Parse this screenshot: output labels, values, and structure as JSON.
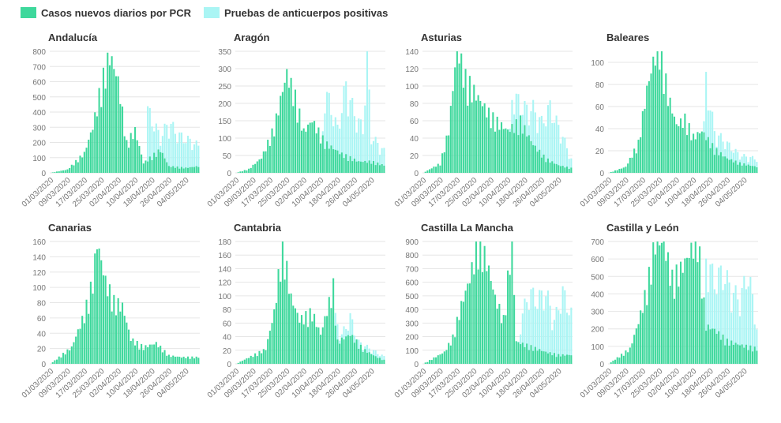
{
  "legend": {
    "pcr_label": "Casos nuevos diarios por PCR",
    "anticuerpos_label": "Pruebas de anticuerpos positivas"
  },
  "colors": {
    "pcr": "#3ed89c",
    "anticuerpos": "#aaf5f4",
    "axis_text": "#777777",
    "grid": "#e6e6e6"
  },
  "chart_data": [
    {
      "type": "bar",
      "title": "Andalucía",
      "ylim": [
        0,
        800
      ],
      "yticks": [
        0,
        100,
        200,
        300,
        400,
        500,
        600,
        700,
        800
      ],
      "xticks": [
        "01/03/2020",
        "09/03/2020",
        "17/03/2020",
        "25/03/2020",
        "02/04/2020",
        "10/04/2020",
        "18/04/2020",
        "26/04/2020",
        "04/05/2020"
      ],
      "series": [
        {
          "name": "Casos nuevos diarios por PCR",
          "color": "#3ed89c",
          "points": [
            [
              0,
              0
            ],
            [
              8,
              20
            ],
            [
              16,
              120
            ],
            [
              20,
              280
            ],
            [
              24,
              530
            ],
            [
              28,
              720
            ],
            [
              32,
              560
            ],
            [
              36,
              180
            ],
            [
              40,
              260
            ],
            [
              44,
              60
            ],
            [
              52,
              140
            ],
            [
              56,
              40
            ],
            [
              64,
              30
            ],
            [
              70,
              40
            ]
          ]
        },
        {
          "name": "Pruebas de anticuerpos positivas",
          "color": "#aaf5f4",
          "points": [
            [
              0,
              0
            ],
            [
              45,
              0
            ],
            [
              46,
              390
            ],
            [
              52,
              220
            ],
            [
              56,
              320
            ],
            [
              60,
              240
            ],
            [
              66,
              200
            ],
            [
              70,
              170
            ]
          ]
        }
      ]
    },
    {
      "type": "bar",
      "title": "Aragón",
      "ylim": [
        0,
        350
      ],
      "yticks": [
        0,
        50,
        100,
        150,
        200,
        250,
        300,
        350
      ],
      "xticks": [
        "01/03/2020",
        "09/03/2020",
        "17/03/2020",
        "25/03/2020",
        "02/04/2020",
        "10/04/2020",
        "18/04/2020",
        "26/04/2020",
        "04/05/2020"
      ],
      "series": [
        {
          "name": "Casos nuevos diarios por PCR",
          "color": "#3ed89c",
          "points": [
            [
              0,
              0
            ],
            [
              6,
              10
            ],
            [
              12,
              40
            ],
            [
              18,
              120
            ],
            [
              22,
              220
            ],
            [
              24,
              265
            ],
            [
              28,
              200
            ],
            [
              32,
              110
            ],
            [
              36,
              140
            ],
            [
              42,
              80
            ],
            [
              50,
              50
            ],
            [
              58,
              30
            ],
            [
              64,
              30
            ],
            [
              70,
              20
            ]
          ]
        },
        {
          "name": "Pruebas de anticuerpos positivas",
          "color": "#aaf5f4",
          "points": [
            [
              0,
              0
            ],
            [
              40,
              0
            ],
            [
              42,
              230
            ],
            [
              48,
              120
            ],
            [
              52,
              240
            ],
            [
              56,
              160
            ],
            [
              60,
              120
            ],
            [
              62,
              320
            ],
            [
              64,
              100
            ],
            [
              70,
              60
            ]
          ]
        }
      ]
    },
    {
      "type": "bar",
      "title": "Asturias",
      "ylim": [
        0,
        140
      ],
      "yticks": [
        0,
        20,
        40,
        60,
        80,
        100,
        120,
        140
      ],
      "xticks": [
        "01/03/2020",
        "09/03/2020",
        "17/03/2020",
        "25/03/2020",
        "02/04/2020",
        "10/04/2020",
        "18/04/2020",
        "26/04/2020",
        "04/05/2020"
      ],
      "series": [
        {
          "name": "Casos nuevos diarios por PCR",
          "color": "#3ed89c",
          "points": [
            [
              0,
              0
            ],
            [
              8,
              10
            ],
            [
              12,
              45
            ],
            [
              16,
              135
            ],
            [
              20,
              100
            ],
            [
              26,
              80
            ],
            [
              32,
              60
            ],
            [
              40,
              45
            ],
            [
              46,
              55
            ],
            [
              52,
              30
            ],
            [
              58,
              15
            ],
            [
              64,
              8
            ],
            [
              70,
              5
            ]
          ]
        },
        {
          "name": "Pruebas de anticuerpos positivas",
          "color": "#aaf5f4",
          "points": [
            [
              0,
              0
            ],
            [
              40,
              0
            ],
            [
              42,
              85
            ],
            [
              48,
              70
            ],
            [
              52,
              70
            ],
            [
              56,
              55
            ],
            [
              60,
              72
            ],
            [
              64,
              50
            ],
            [
              66,
              40
            ],
            [
              70,
              15
            ]
          ]
        }
      ]
    },
    {
      "type": "bar",
      "title": "Baleares",
      "ylim": [
        0,
        110
      ],
      "yticks": [
        0,
        20,
        40,
        60,
        80,
        100
      ],
      "xticks": [
        "01/03/2020",
        "09/03/2020",
        "17/03/2020",
        "25/03/2020",
        "02/04/2020",
        "10/04/2020",
        "18/04/2020",
        "26/04/2020",
        "04/05/2020"
      ],
      "series": [
        {
          "name": "Casos nuevos diarios por PCR",
          "color": "#3ed89c",
          "points": [
            [
              0,
              0
            ],
            [
              8,
              5
            ],
            [
              14,
              25
            ],
            [
              18,
              70
            ],
            [
              22,
              100
            ],
            [
              24,
              107
            ],
            [
              28,
              65
            ],
            [
              32,
              40
            ],
            [
              36,
              45
            ],
            [
              40,
              30
            ],
            [
              44,
              35
            ],
            [
              50,
              20
            ],
            [
              56,
              12
            ],
            [
              62,
              8
            ],
            [
              70,
              5
            ]
          ]
        },
        {
          "name": "Pruebas de anticuerpos positivas",
          "color": "#aaf5f4",
          "points": [
            [
              0,
              0
            ],
            [
              44,
              0
            ],
            [
              46,
              80
            ],
            [
              50,
              35
            ],
            [
              56,
              25
            ],
            [
              62,
              15
            ],
            [
              70,
              12
            ]
          ]
        }
      ]
    },
    {
      "type": "bar",
      "title": "Canarias",
      "ylim": [
        0,
        160
      ],
      "yticks": [
        0,
        20,
        40,
        60,
        80,
        100,
        120,
        140,
        160
      ],
      "xticks": [
        "01/03/2020",
        "09/03/2020",
        "17/03/2020",
        "25/03/2020",
        "02/04/2020",
        "10/04/2020",
        "18/04/2020",
        "26/04/2020",
        "04/05/2020"
      ],
      "series": [
        {
          "name": "Casos nuevos diarios por PCR",
          "color": "#3ed89c",
          "points": [
            [
              0,
              0
            ],
            [
              10,
              20
            ],
            [
              16,
              60
            ],
            [
              20,
              100
            ],
            [
              22,
              148
            ],
            [
              26,
              100
            ],
            [
              30,
              75
            ],
            [
              34,
              70
            ],
            [
              38,
              30
            ],
            [
              44,
              20
            ],
            [
              50,
              25
            ],
            [
              56,
              10
            ],
            [
              62,
              8
            ],
            [
              70,
              8
            ]
          ]
        },
        {
          "name": "Pruebas de anticuerpos positivas",
          "color": "#aaf5f4",
          "points": [
            [
              0,
              0
            ],
            [
              70,
              0
            ]
          ]
        }
      ]
    },
    {
      "type": "bar",
      "title": "Cantabria",
      "ylim": [
        0,
        180
      ],
      "yticks": [
        0,
        20,
        40,
        60,
        80,
        100,
        120,
        140,
        160,
        180
      ],
      "xticks": [
        "01/03/2020",
        "09/03/2020",
        "17/03/2020",
        "25/03/2020",
        "02/04/2020",
        "10/04/2020",
        "18/04/2020",
        "26/04/2020",
        "04/05/2020"
      ],
      "series": [
        {
          "name": "Casos nuevos diarios por PCR",
          "color": "#3ed89c",
          "points": [
            [
              0,
              0
            ],
            [
              14,
              20
            ],
            [
              18,
              70
            ],
            [
              22,
              165
            ],
            [
              26,
              90
            ],
            [
              30,
              60
            ],
            [
              36,
              70
            ],
            [
              40,
              40
            ],
            [
              46,
              105
            ],
            [
              48,
              30
            ],
            [
              54,
              40
            ],
            [
              60,
              20
            ],
            [
              66,
              10
            ],
            [
              70,
              5
            ]
          ]
        },
        {
          "name": "Pruebas de anticuerpos positivas",
          "color": "#aaf5f4",
          "points": [
            [
              0,
              0
            ],
            [
              44,
              0
            ],
            [
              46,
              70
            ],
            [
              50,
              40
            ],
            [
              54,
              65
            ],
            [
              58,
              30
            ],
            [
              64,
              20
            ],
            [
              70,
              10
            ]
          ]
        }
      ]
    },
    {
      "type": "bar",
      "title": "Castilla La Mancha",
      "ylim": [
        0,
        900
      ],
      "yticks": [
        0,
        100,
        200,
        300,
        400,
        500,
        600,
        700,
        800,
        900
      ],
      "xticks": [
        "01/03/2020",
        "09/03/2020",
        "17/03/2020",
        "25/03/2020",
        "02/04/2020",
        "10/04/2020",
        "18/04/2020",
        "26/04/2020",
        "04/05/2020"
      ],
      "series": [
        {
          "name": "Casos nuevos diarios por PCR",
          "color": "#3ed89c",
          "points": [
            [
              0,
              0
            ],
            [
              10,
              80
            ],
            [
              14,
              180
            ],
            [
              18,
              400
            ],
            [
              22,
              580
            ],
            [
              26,
              840
            ],
            [
              30,
              700
            ],
            [
              34,
              450
            ],
            [
              38,
              300
            ],
            [
              42,
              850
            ],
            [
              44,
              150
            ],
            [
              50,
              120
            ],
            [
              58,
              80
            ],
            [
              64,
              60
            ],
            [
              70,
              60
            ]
          ]
        },
        {
          "name": "Pruebas de anticuerpos positivas",
          "color": "#aaf5f4",
          "points": [
            [
              0,
              0
            ],
            [
              44,
              0
            ],
            [
              46,
              300
            ],
            [
              50,
              500
            ],
            [
              54,
              450
            ],
            [
              58,
              500
            ],
            [
              62,
              300
            ],
            [
              66,
              500
            ],
            [
              70,
              350
            ]
          ]
        }
      ]
    },
    {
      "type": "bar",
      "title": "Castilla y León",
      "ylim": [
        0,
        700
      ],
      "yticks": [
        0,
        100,
        200,
        300,
        400,
        500,
        600,
        700
      ],
      "xticks": [
        "01/03/2020",
        "09/03/2020",
        "17/03/2020",
        "25/03/2020",
        "02/04/2020",
        "10/04/2020",
        "18/04/2020",
        "26/04/2020",
        "04/05/2020"
      ],
      "series": [
        {
          "name": "Casos nuevos diarios por PCR",
          "color": "#3ed89c",
          "points": [
            [
              0,
              0
            ],
            [
              10,
              80
            ],
            [
              14,
              220
            ],
            [
              18,
              400
            ],
            [
              22,
              650
            ],
            [
              26,
              640
            ],
            [
              30,
              450
            ],
            [
              34,
              500
            ],
            [
              38,
              580
            ],
            [
              42,
              680
            ],
            [
              46,
              200
            ],
            [
              50,
              180
            ],
            [
              56,
              120
            ],
            [
              62,
              100
            ],
            [
              70,
              80
            ]
          ]
        },
        {
          "name": "Pruebas de anticuerpos positivas",
          "color": "#aaf5f4",
          "points": [
            [
              0,
              0
            ],
            [
              44,
              0
            ],
            [
              46,
              580
            ],
            [
              50,
              450
            ],
            [
              54,
              500
            ],
            [
              58,
              400
            ],
            [
              62,
              350
            ],
            [
              66,
              500
            ],
            [
              70,
              200
            ]
          ]
        }
      ]
    }
  ]
}
